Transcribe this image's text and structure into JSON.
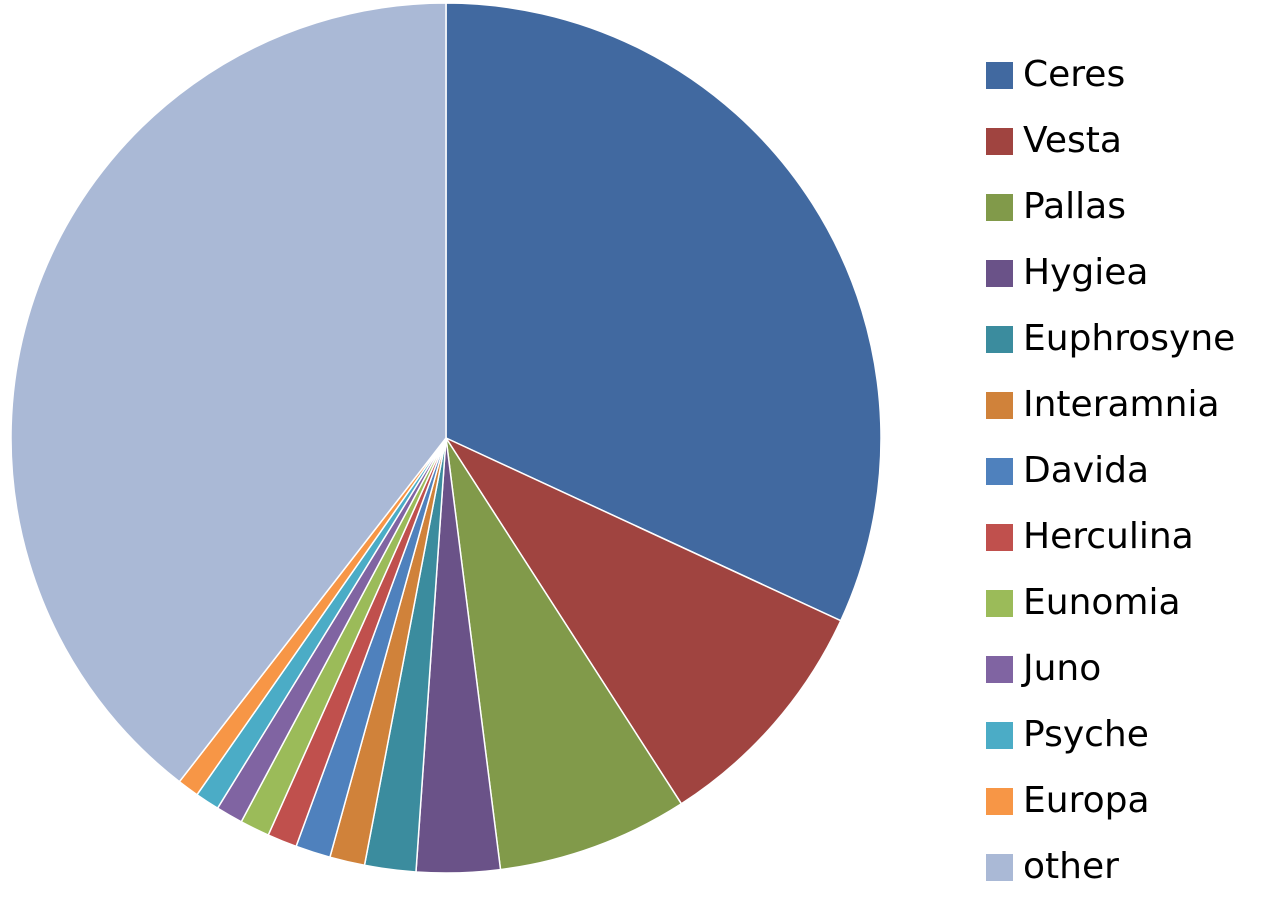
{
  "chart_data": {
    "type": "pie",
    "title": "",
    "unit": "%",
    "start_angle_deg": 0,
    "direction": "clockwise",
    "legend_position": "right",
    "slices": [
      {
        "label": "Ceres",
        "value": 31.9,
        "color": "#4169A0"
      },
      {
        "label": "Vesta",
        "value": 9.0,
        "color": "#A04440"
      },
      {
        "label": "Pallas",
        "value": 7.1,
        "color": "#819A4A"
      },
      {
        "label": "Hygiea",
        "value": 3.1,
        "color": "#6A5288"
      },
      {
        "label": "Euphrosyne",
        "value": 1.9,
        "color": "#3B8C9E"
      },
      {
        "label": "Interamnia",
        "value": 1.3,
        "color": "#D0823A"
      },
      {
        "label": "Davida",
        "value": 1.3,
        "color": "#4F81BD"
      },
      {
        "label": "Herculina",
        "value": 1.1,
        "color": "#C0504D"
      },
      {
        "label": "Eunomia",
        "value": 1.1,
        "color": "#9BBB59"
      },
      {
        "label": "Juno",
        "value": 1.0,
        "color": "#8064A2"
      },
      {
        "label": "Psyche",
        "value": 0.9,
        "color": "#4BACC6"
      },
      {
        "label": "Europa",
        "value": 0.8,
        "color": "#F79646"
      },
      {
        "label": "other",
        "value": 39.5,
        "color": "#AAB9D6"
      }
    ]
  }
}
